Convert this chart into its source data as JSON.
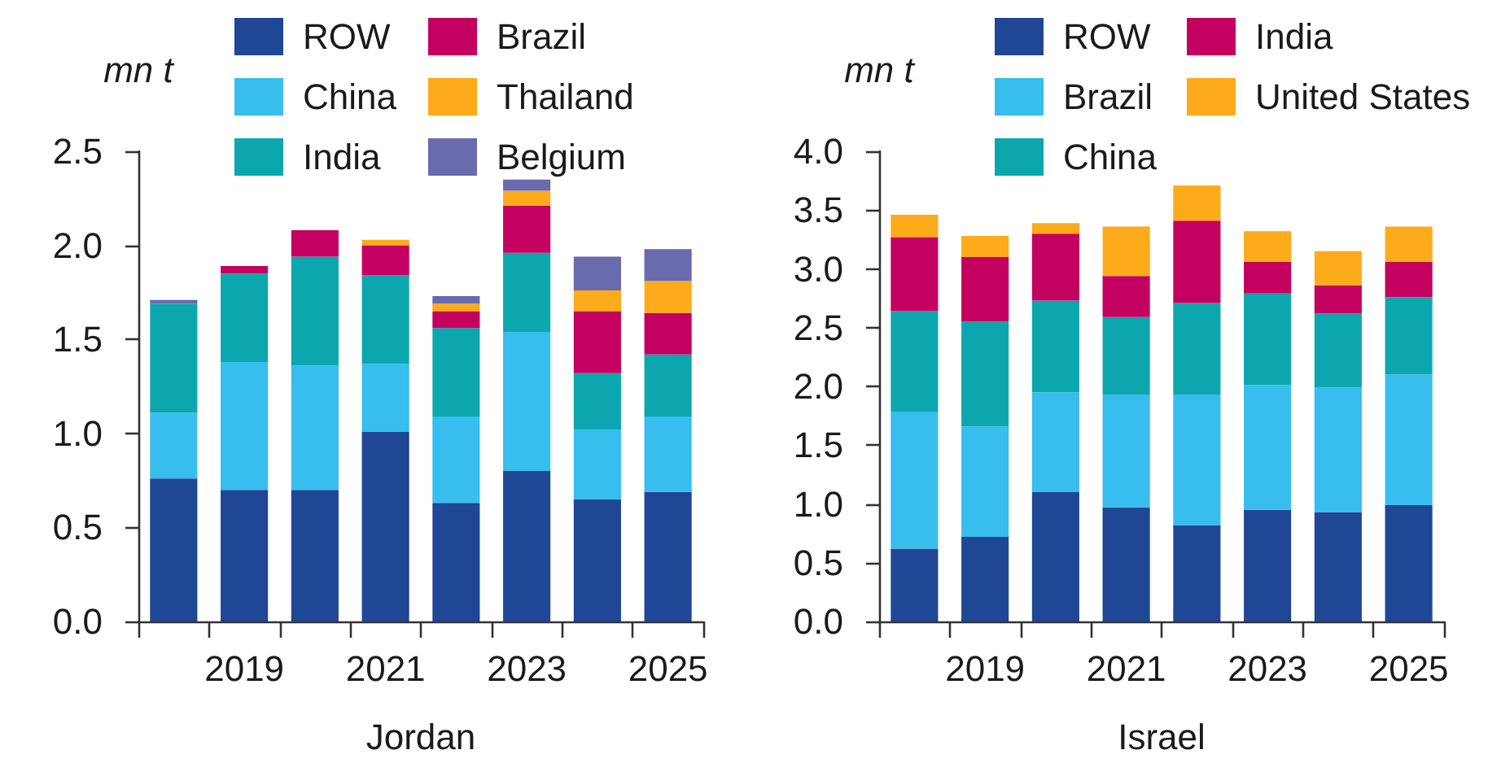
{
  "chart_data": [
    {
      "type": "bar",
      "stacked": true,
      "xlabel": "Jordan",
      "ylabel": "mn t",
      "legend": "top",
      "categories": [
        null,
        "2019",
        null,
        "2021",
        null,
        "2023",
        null,
        "2025"
      ],
      "ylim": [
        0,
        2.5
      ],
      "yticks": [
        {
          "value": 0,
          "label": "0.0"
        },
        0.5,
        {
          "value": 1,
          "label": "1.0"
        },
        1.5,
        {
          "value": 2,
          "label": "2.0"
        },
        2.5
      ],
      "series": [
        {
          "name": "ROW",
          "color": "#1f4795",
          "values": [
            0.76,
            0.7,
            0.7,
            1.01,
            0.63,
            0.8,
            0.65,
            0.69
          ]
        },
        {
          "name": "China",
          "color": "#37bdee",
          "values": [
            0.35,
            0.68,
            0.66,
            0.36,
            0.46,
            0.74,
            0.37,
            0.4
          ]
        },
        {
          "name": "India",
          "color": "#0ca7ae",
          "values": [
            0.58,
            0.47,
            0.58,
            0.47,
            0.47,
            0.42,
            0.3,
            0.33
          ]
        },
        {
          "name": "Brazil",
          "color": "#c40060",
          "values": [
            null,
            0.04,
            0.14,
            0.16,
            0.09,
            0.25,
            0.33,
            0.22
          ]
        },
        {
          "name": "Thailand",
          "color": "#fdab1b",
          "values": [
            null,
            null,
            null,
            0.03,
            0.04,
            0.08,
            0.11,
            0.17
          ]
        },
        {
          "name": "Belgium",
          "color": "#6a6aaf",
          "values": [
            0.02,
            null,
            null,
            null,
            0.04,
            0.06,
            0.18,
            0.17
          ]
        }
      ]
    },
    {
      "type": "bar",
      "stacked": true,
      "xlabel": "Israel",
      "ylabel": "mn t",
      "legend": "top",
      "categories": [
        null,
        "2019",
        null,
        "2021",
        null,
        "2023",
        null,
        "2025"
      ],
      "ylim": [
        0,
        4
      ],
      "yticks": [
        {
          "value": 0,
          "label": "0.0"
        },
        0.5,
        {
          "value": 1,
          "label": "1.0"
        },
        1.5,
        {
          "value": 2,
          "label": "2.0"
        },
        2.5,
        {
          "value": 3,
          "label": "3.0"
        },
        3.5,
        {
          "value": 4,
          "label": "4.0"
        }
      ],
      "series": [
        {
          "name": "ROW",
          "color": "#1f4795",
          "values": [
            0.62,
            0.72,
            1.1,
            0.97,
            0.82,
            0.95,
            0.93,
            0.99
          ]
        },
        {
          "name": "Brazil",
          "color": "#37bdee",
          "values": [
            1.16,
            0.94,
            0.85,
            0.96,
            1.11,
            1.06,
            1.06,
            1.11
          ]
        },
        {
          "name": "China",
          "color": "#0ca7ae",
          "values": [
            0.86,
            0.89,
            0.78,
            0.66,
            0.78,
            0.78,
            0.63,
            0.66
          ]
        },
        {
          "name": "India",
          "color": "#c40060",
          "values": [
            0.63,
            0.55,
            0.57,
            0.35,
            0.7,
            0.27,
            0.24,
            0.3
          ]
        },
        {
          "name": "United States",
          "color": "#fdab1b",
          "values": [
            0.19,
            0.18,
            0.09,
            0.42,
            0.3,
            0.26,
            0.29,
            0.3
          ]
        }
      ]
    }
  ]
}
